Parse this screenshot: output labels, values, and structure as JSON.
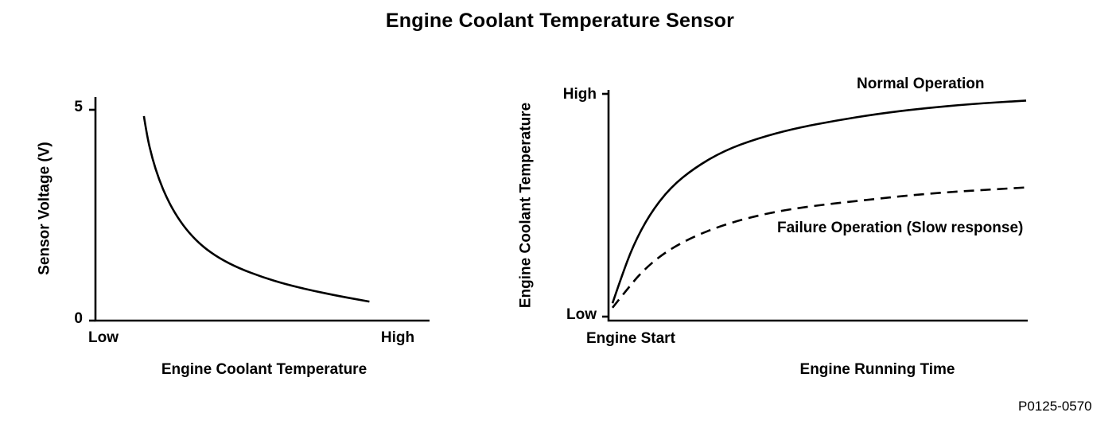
{
  "title": "Engine Coolant Temperature Sensor",
  "figure_code": "P0125-0570",
  "chart_data": [
    {
      "type": "line",
      "title": "",
      "xlabel": "Engine Coolant Temperature",
      "ylabel": "Sensor Voltage (V)",
      "x_tick_labels": [
        "Low",
        "High"
      ],
      "y_tick_labels": [
        "0",
        "5"
      ],
      "xlim": [
        0,
        1
      ],
      "ylim": [
        0,
        5
      ],
      "grid": false,
      "legend": "none",
      "series": [
        {
          "name": "Sensor voltage vs coolant temperature",
          "style": "solid",
          "x": [
            0.145,
            0.155,
            0.17,
            0.19,
            0.215,
            0.245,
            0.28,
            0.32,
            0.37,
            0.43,
            0.5,
            0.57,
            0.65,
            0.73,
            0.82
          ],
          "y": [
            4.85,
            4.35,
            3.85,
            3.35,
            2.88,
            2.45,
            2.08,
            1.76,
            1.48,
            1.24,
            1.03,
            0.86,
            0.71,
            0.58,
            0.45
          ]
        }
      ]
    },
    {
      "type": "line",
      "title": "",
      "xlabel": "Engine Running Time",
      "ylabel": "Engine Coolant Temperature",
      "x_start_label": "Engine Start",
      "y_tick_labels": [
        "Low",
        "High"
      ],
      "xlim": [
        0,
        1
      ],
      "ylim": [
        0,
        1
      ],
      "grid": false,
      "legend": "inline-annotations",
      "series": [
        {
          "name": "Normal Operation",
          "style": "solid",
          "x": [
            0.0,
            0.02,
            0.05,
            0.09,
            0.14,
            0.2,
            0.27,
            0.35,
            0.44,
            0.54,
            0.64,
            0.75,
            0.87,
            1.0
          ],
          "y": [
            0.06,
            0.17,
            0.32,
            0.46,
            0.58,
            0.67,
            0.745,
            0.8,
            0.845,
            0.88,
            0.91,
            0.935,
            0.955,
            0.97
          ]
        },
        {
          "name": "Failure Operation (Slow response)",
          "style": "dashed",
          "x": [
            0.0,
            0.03,
            0.07,
            0.12,
            0.18,
            0.25,
            0.33,
            0.42,
            0.52,
            0.62,
            0.72,
            0.82,
            0.91,
            1.0
          ],
          "y": [
            0.04,
            0.11,
            0.2,
            0.28,
            0.345,
            0.4,
            0.445,
            0.48,
            0.505,
            0.525,
            0.545,
            0.56,
            0.57,
            0.58
          ]
        }
      ]
    }
  ],
  "colors": {
    "ink": "#000000",
    "background": "#ffffff"
  }
}
